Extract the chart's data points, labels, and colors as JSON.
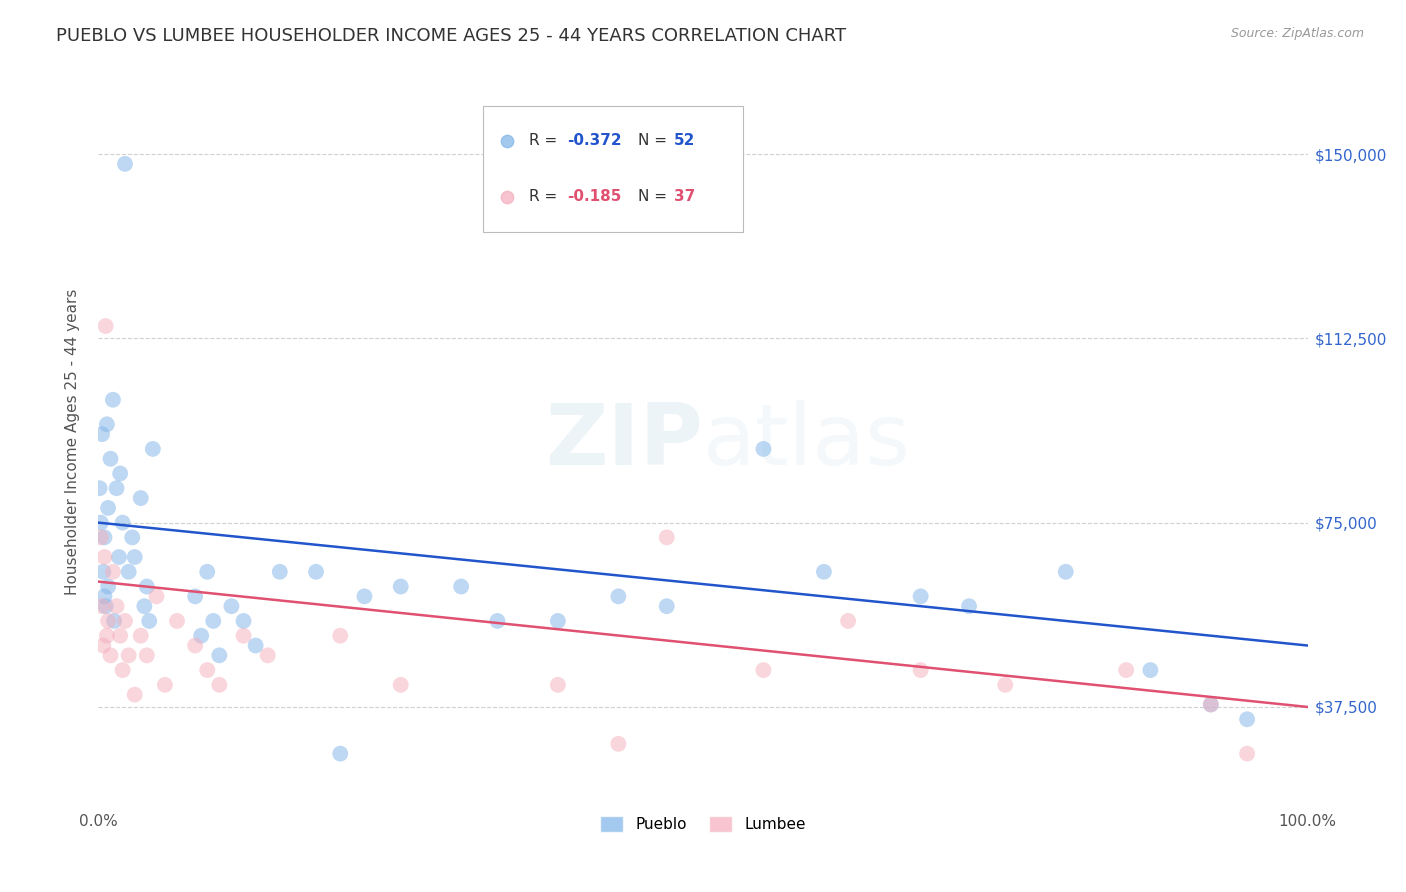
{
  "title": "PUEBLO VS LUMBEE HOUSEHOLDER INCOME AGES 25 - 44 YEARS CORRELATION CHART",
  "source": "Source: ZipAtlas.com",
  "ylabel": "Householder Income Ages 25 - 44 years",
  "x_min": 0.0,
  "x_max": 1.0,
  "y_min": 18000,
  "y_max": 165000,
  "y_ticks": [
    37500,
    75000,
    112500,
    150000
  ],
  "y_tick_labels": [
    "$37,500",
    "$75,000",
    "$112,500",
    "$150,000"
  ],
  "background_color": "#ffffff",
  "grid_color": "#cccccc",
  "pueblo_color": "#7EB3E8",
  "lumbee_color": "#F4ACBB",
  "pueblo_line_color": "#2255CC",
  "lumbee_line_color": "#E05070",
  "pueblo_line_y0": 75000,
  "pueblo_line_y1": 50000,
  "lumbee_line_y0": 63000,
  "lumbee_line_y1": 37500,
  "legend_r_pueblo": "-0.372",
  "legend_n_pueblo": "52",
  "legend_r_lumbee": "-0.185",
  "legend_n_lumbee": "37",
  "marker_size": 130,
  "marker_alpha": 0.5,
  "line_width": 1.8,
  "title_fontsize": 13,
  "axis_label_fontsize": 11,
  "tick_fontsize": 11,
  "right_tick_color": "#3366CC",
  "watermark_color": "#7aaad0",
  "watermark_alpha": 0.13,
  "pueblo_x": [
    0.001,
    0.002,
    0.003,
    0.004,
    0.005,
    0.005,
    0.006,
    0.007,
    0.008,
    0.008,
    0.01,
    0.012,
    0.013,
    0.015,
    0.017,
    0.018,
    0.02,
    0.022,
    0.025,
    0.028,
    0.03,
    0.035,
    0.038,
    0.04,
    0.042,
    0.045,
    0.08,
    0.085,
    0.09,
    0.095,
    0.1,
    0.11,
    0.12,
    0.13,
    0.15,
    0.18,
    0.2,
    0.22,
    0.25,
    0.3,
    0.33,
    0.38,
    0.43,
    0.47,
    0.55,
    0.6,
    0.68,
    0.72,
    0.8,
    0.87,
    0.92,
    0.95
  ],
  "pueblo_y": [
    82000,
    75000,
    93000,
    65000,
    60000,
    72000,
    58000,
    95000,
    62000,
    78000,
    88000,
    100000,
    55000,
    82000,
    68000,
    85000,
    75000,
    148000,
    65000,
    72000,
    68000,
    80000,
    58000,
    62000,
    55000,
    90000,
    60000,
    52000,
    65000,
    55000,
    48000,
    58000,
    55000,
    50000,
    65000,
    65000,
    28000,
    60000,
    62000,
    62000,
    55000,
    55000,
    60000,
    58000,
    90000,
    65000,
    60000,
    58000,
    65000,
    45000,
    38000,
    35000
  ],
  "lumbee_x": [
    0.002,
    0.003,
    0.004,
    0.005,
    0.006,
    0.007,
    0.008,
    0.01,
    0.012,
    0.015,
    0.018,
    0.02,
    0.022,
    0.025,
    0.03,
    0.035,
    0.04,
    0.048,
    0.055,
    0.065,
    0.08,
    0.09,
    0.1,
    0.12,
    0.14,
    0.2,
    0.25,
    0.38,
    0.43,
    0.47,
    0.55,
    0.62,
    0.68,
    0.75,
    0.85,
    0.92,
    0.95
  ],
  "lumbee_y": [
    72000,
    58000,
    50000,
    68000,
    115000,
    52000,
    55000,
    48000,
    65000,
    58000,
    52000,
    45000,
    55000,
    48000,
    40000,
    52000,
    48000,
    60000,
    42000,
    55000,
    50000,
    45000,
    42000,
    52000,
    48000,
    52000,
    42000,
    42000,
    30000,
    72000,
    45000,
    55000,
    45000,
    42000,
    45000,
    38000,
    28000
  ]
}
